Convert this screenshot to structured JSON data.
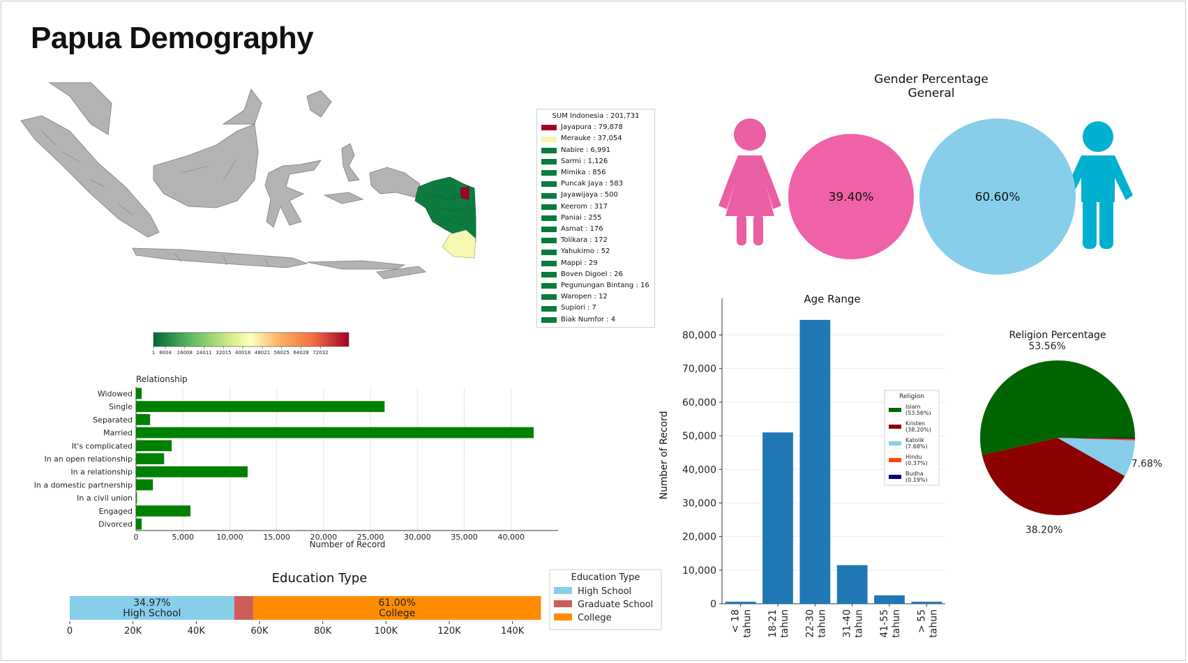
{
  "page": {
    "title": "Papua Demography"
  },
  "map": {
    "legend_title": "SUM Indonesia : 201,731",
    "entries": [
      {
        "label": "Jayapura : 79,878",
        "color": "#a50026"
      },
      {
        "label": "Merauke : 37,054",
        "color": "#f6f7b0"
      },
      {
        "label": "Nabire : 6,991",
        "color": "#0a7a3e"
      },
      {
        "label": "Sarmi : 1,126",
        "color": "#0a7a3e"
      },
      {
        "label": "Mimika : 856",
        "color": "#0a7a3e"
      },
      {
        "label": "Puncak Jaya : 583",
        "color": "#0a7a3e"
      },
      {
        "label": "Jayawijaya : 500",
        "color": "#0a7a3e"
      },
      {
        "label": "Keerom : 317",
        "color": "#0a7a3e"
      },
      {
        "label": "Paniai : 255",
        "color": "#0a7a3e"
      },
      {
        "label": "Asmat : 176",
        "color": "#0a7a3e"
      },
      {
        "label": "Tolikara : 172",
        "color": "#0a7a3e"
      },
      {
        "label": "Yahukimo : 52",
        "color": "#0a7a3e"
      },
      {
        "label": "Mappi : 29",
        "color": "#0a7a3e"
      },
      {
        "label": "Boven Digoel : 26",
        "color": "#0a7a3e"
      },
      {
        "label": "Pegunungan Bintang : 16",
        "color": "#0a7a3e"
      },
      {
        "label": "Waropen : 12",
        "color": "#0a7a3e"
      },
      {
        "label": "Supiori : 7",
        "color": "#0a7a3e"
      },
      {
        "label": "Biak Numfor : 4",
        "color": "#0a7a3e"
      }
    ],
    "colorbar_ticks": [
      "1",
      "8004",
      "16008",
      "24011",
      "32015",
      "40018",
      "48021",
      "56025",
      "64028",
      "72032"
    ]
  },
  "gender": {
    "title": "Gender Percentage",
    "subtitle": "General",
    "female_pct": "39.40%",
    "male_pct": "60.60%",
    "female_color": "#f062a8",
    "male_color": "#87ceeb",
    "female_icon_color": "#ea5fa3",
    "male_icon_color": "#00b0d0"
  },
  "chart_data": [
    {
      "type": "bar",
      "orientation": "horizontal",
      "title": "Relationship",
      "xlabel": "Number of Record",
      "ylabel": "",
      "categories": [
        "Widowed",
        "Single",
        "Separated",
        "Married",
        "It's complicated",
        "In an open relationship",
        "In a relationship",
        "In a domestic partnership",
        "In a civil union",
        "Engaged",
        "Divorced"
      ],
      "values": [
        600,
        26500,
        1500,
        42400,
        3800,
        3000,
        11900,
        1800,
        100,
        5800,
        600
      ],
      "xlim": [
        0,
        45000
      ],
      "xticks": [
        "0",
        "5,000",
        "10,000",
        "15,000",
        "20,000",
        "25,000",
        "30,000",
        "35,000",
        "40,000"
      ],
      "color": "#008000",
      "grid": true
    },
    {
      "type": "bar",
      "orientation": "horizontal-stacked",
      "title": "Education Type",
      "series": [
        {
          "name": "High School",
          "values": [
            52000
          ],
          "label": "34.97%\nHigh School",
          "color": "#87ceeb"
        },
        {
          "name": "Graduate School",
          "values": [
            6000
          ],
          "label": "",
          "color": "#cd5c5c"
        },
        {
          "name": "College",
          "values": [
            91000
          ],
          "label": "61.00%\nCollege",
          "color": "#ff8c00"
        }
      ],
      "xlim": [
        0,
        150000
      ],
      "xticks": [
        "0",
        "20K",
        "40K",
        "60K",
        "80K",
        "100K",
        "120K",
        "140K"
      ],
      "legend_title": "Education Type",
      "legend_position": "right"
    },
    {
      "type": "bar",
      "title": "Age Range",
      "xlabel": "",
      "ylabel": "Number of Record",
      "categories": [
        "< 18\ntahun",
        "18-21\ntahun",
        "22-30\ntahun",
        "31-40\ntahun",
        "41-55\ntahun",
        "> 55\ntahun"
      ],
      "values": [
        600,
        51000,
        84500,
        11500,
        2500,
        600
      ],
      "ylim": [
        0,
        88000
      ],
      "yticks": [
        "0",
        "10,000",
        "20,000",
        "30,000",
        "40,000",
        "50,000",
        "60,000",
        "70,000",
        "80,000"
      ],
      "color": "#1f77b4",
      "grid": true
    },
    {
      "type": "pie",
      "title": "Religion Percentage",
      "slices": [
        {
          "name": "Islam\n(53.56%)",
          "value": 53.56,
          "color": "#006400",
          "label": "53.56%"
        },
        {
          "name": "Kristen\n(38.20%)",
          "value": 38.2,
          "color": "#8b0000",
          "label": "38.20%"
        },
        {
          "name": "Katolik\n(7.68%)",
          "value": 7.68,
          "color": "#87ceeb",
          "label": "7.68%"
        },
        {
          "name": "Hindu\n(0.37%)",
          "value": 0.37,
          "color": "#ff4500",
          "label": ""
        },
        {
          "name": "Budha\n(0.19%)",
          "value": 0.19,
          "color": "#00008b",
          "label": ""
        }
      ],
      "legend_title": "Religion",
      "legend_position": "left"
    }
  ]
}
